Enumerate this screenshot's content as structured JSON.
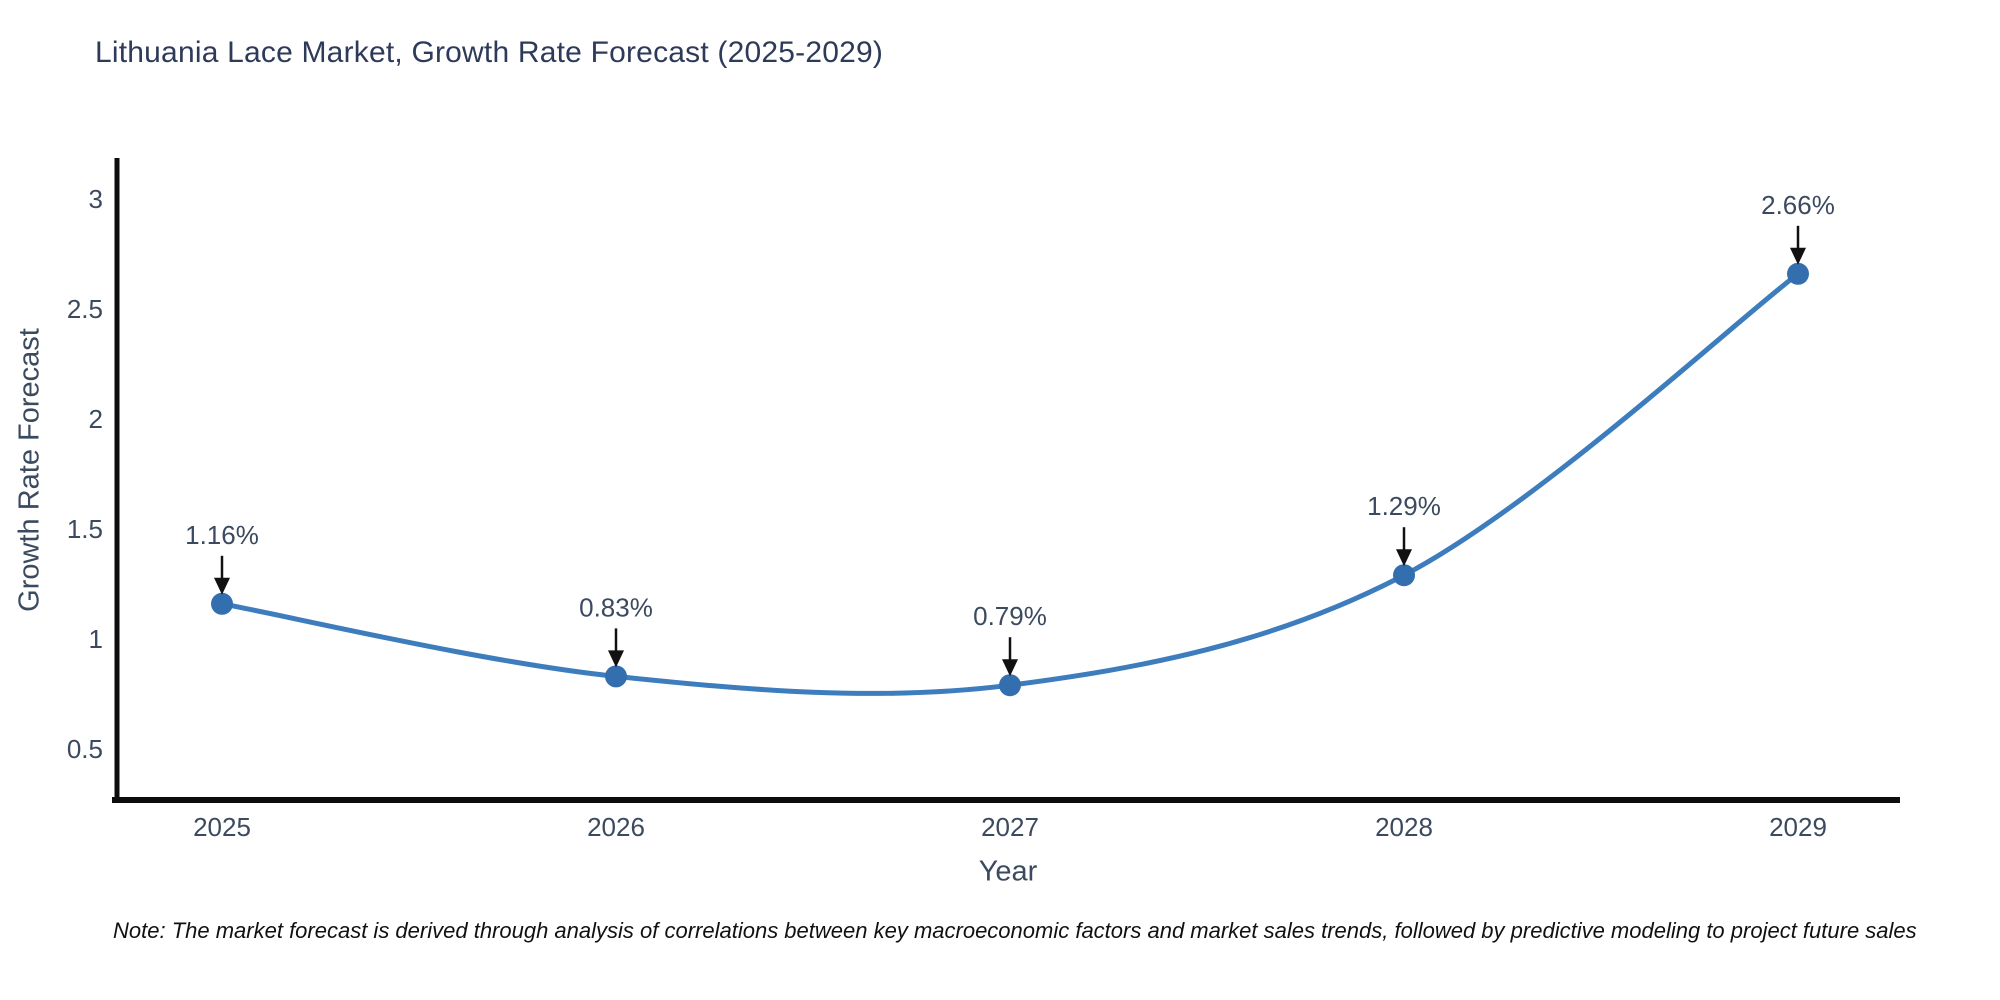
{
  "title": "Lithuania Lace Market, Growth Rate Forecast (2025-2029)",
  "note": "Note: The market forecast is derived through analysis of correlations between key macroeconomic factors and market sales trends, followed by predictive modeling to project future sales",
  "chart_data": {
    "type": "line",
    "title": "Lithuania Lace Market, Growth Rate Forecast (2025-2029)",
    "xlabel": "Year",
    "ylabel": "Growth Rate Forecast",
    "x": [
      2025,
      2026,
      2027,
      2028,
      2029
    ],
    "series": [
      {
        "name": "Growth Rate Forecast",
        "values": [
          1.16,
          0.83,
          0.79,
          1.29,
          2.66
        ]
      }
    ],
    "point_labels": [
      "1.16%",
      "0.83%",
      "0.79%",
      "1.29%",
      "2.66%"
    ],
    "yticks": [
      0.5,
      1,
      1.5,
      2,
      2.5,
      3
    ],
    "ylim": [
      0.28,
      3.2
    ],
    "line_shape": "spline",
    "grid": false,
    "legend": "none",
    "colors": {
      "line": "#3d7dbd",
      "marker": "#336fae",
      "axis": "#0d0d0d",
      "tick_text": "#3b4a5f",
      "title_text": "#2e3a59",
      "annotation_text": "#3b4a5f",
      "arrow": "#111111"
    }
  }
}
